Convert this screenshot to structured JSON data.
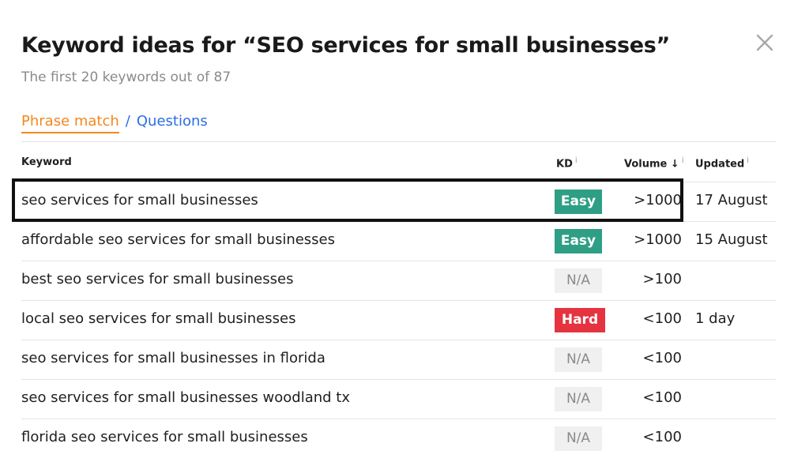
{
  "header": {
    "title": "Keyword ideas for “SEO services for small businesses”",
    "subtitle": "The first 20 keywords out of 87",
    "close_icon": "close-icon"
  },
  "tabs": {
    "active": "Phrase match",
    "separator": "/",
    "other": "Questions"
  },
  "columns": {
    "keyword": "Keyword",
    "kd": "KD",
    "volume": "Volume",
    "volume_sort_icon": "↓",
    "updated": "Updated",
    "info_icon": "i"
  },
  "rows": [
    {
      "keyword": "seo services for small businesses",
      "kd": "Easy",
      "kd_level": "easy",
      "volume": ">1000",
      "updated": "17 August",
      "highlighted": true
    },
    {
      "keyword": "affordable seo services for small businesses",
      "kd": "Easy",
      "kd_level": "easy",
      "volume": ">1000",
      "updated": "15 August"
    },
    {
      "keyword": "best seo services for small businesses",
      "kd": "N/A",
      "kd_level": "na",
      "volume": ">100",
      "updated": ""
    },
    {
      "keyword": "local seo services for small businesses",
      "kd": "Hard",
      "kd_level": "hard",
      "volume": "<100",
      "updated": "1 day"
    },
    {
      "keyword": "seo services for small businesses in florida",
      "kd": "N/A",
      "kd_level": "na",
      "volume": "<100",
      "updated": ""
    },
    {
      "keyword": "seo services for small businesses woodland tx",
      "kd": "N/A",
      "kd_level": "na",
      "volume": "<100",
      "updated": ""
    },
    {
      "keyword": "florida seo services for small businesses",
      "kd": "N/A",
      "kd_level": "na",
      "volume": "<100",
      "updated": ""
    }
  ],
  "colors": {
    "accent_orange": "#f5871f",
    "link_blue": "#2b6de8",
    "easy_green": "#2e9e84",
    "hard_red": "#e5333f",
    "na_gray": "#f0f0f0"
  }
}
